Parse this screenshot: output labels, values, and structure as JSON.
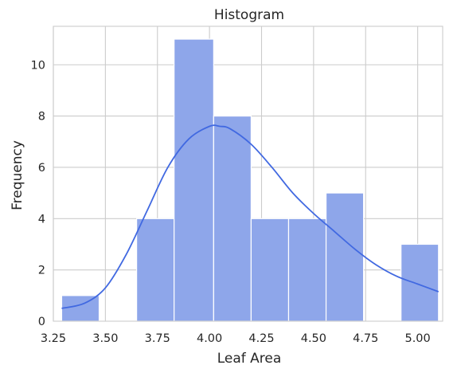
{
  "chart_data": {
    "type": "bar",
    "title": "Histogram",
    "xlabel": "Leaf Area",
    "ylabel": "Frequency",
    "xlim": [
      3.25,
      5.12
    ],
    "ylim": [
      0,
      11.5
    ],
    "x_ticks": [
      3.25,
      3.5,
      3.75,
      4.0,
      4.25,
      4.5,
      4.75,
      5.0
    ],
    "x_tick_labels": [
      "3.25",
      "3.50",
      "3.75",
      "4.00",
      "4.25",
      "4.50",
      "4.75",
      "5.00"
    ],
    "y_ticks": [
      0,
      2,
      4,
      6,
      8,
      10
    ],
    "y_tick_labels": [
      "0",
      "2",
      "4",
      "6",
      "8",
      "10"
    ],
    "grid": true,
    "bins": [
      {
        "start": 3.29,
        "end": 3.47,
        "count": 1
      },
      {
        "start": 3.47,
        "end": 3.65,
        "count": 0
      },
      {
        "start": 3.65,
        "end": 3.83,
        "count": 4
      },
      {
        "start": 3.83,
        "end": 4.02,
        "count": 11
      },
      {
        "start": 4.02,
        "end": 4.2,
        "count": 8
      },
      {
        "start": 4.2,
        "end": 4.38,
        "count": 4
      },
      {
        "start": 4.38,
        "end": 4.56,
        "count": 4
      },
      {
        "start": 4.56,
        "end": 4.74,
        "count": 5
      },
      {
        "start": 4.74,
        "end": 4.92,
        "count": 0
      },
      {
        "start": 4.92,
        "end": 5.1,
        "count": 3
      }
    ],
    "kde": {
      "x": [
        3.29,
        3.4,
        3.5,
        3.6,
        3.7,
        3.8,
        3.9,
        4.0,
        4.05,
        4.1,
        4.2,
        4.3,
        4.4,
        4.5,
        4.6,
        4.7,
        4.8,
        4.9,
        5.0,
        5.1
      ],
      "y": [
        0.5,
        0.7,
        1.3,
        2.6,
        4.3,
        6.0,
        7.1,
        7.6,
        7.6,
        7.5,
        6.9,
        6.0,
        5.0,
        4.2,
        3.5,
        2.8,
        2.2,
        1.75,
        1.45,
        1.15
      ]
    },
    "colors": {
      "bar_fill": "#8ea6ea",
      "bar_edge": "#ffffff",
      "kde_line": "#4169e1",
      "grid": "#cccccc",
      "text": "#262626"
    }
  }
}
